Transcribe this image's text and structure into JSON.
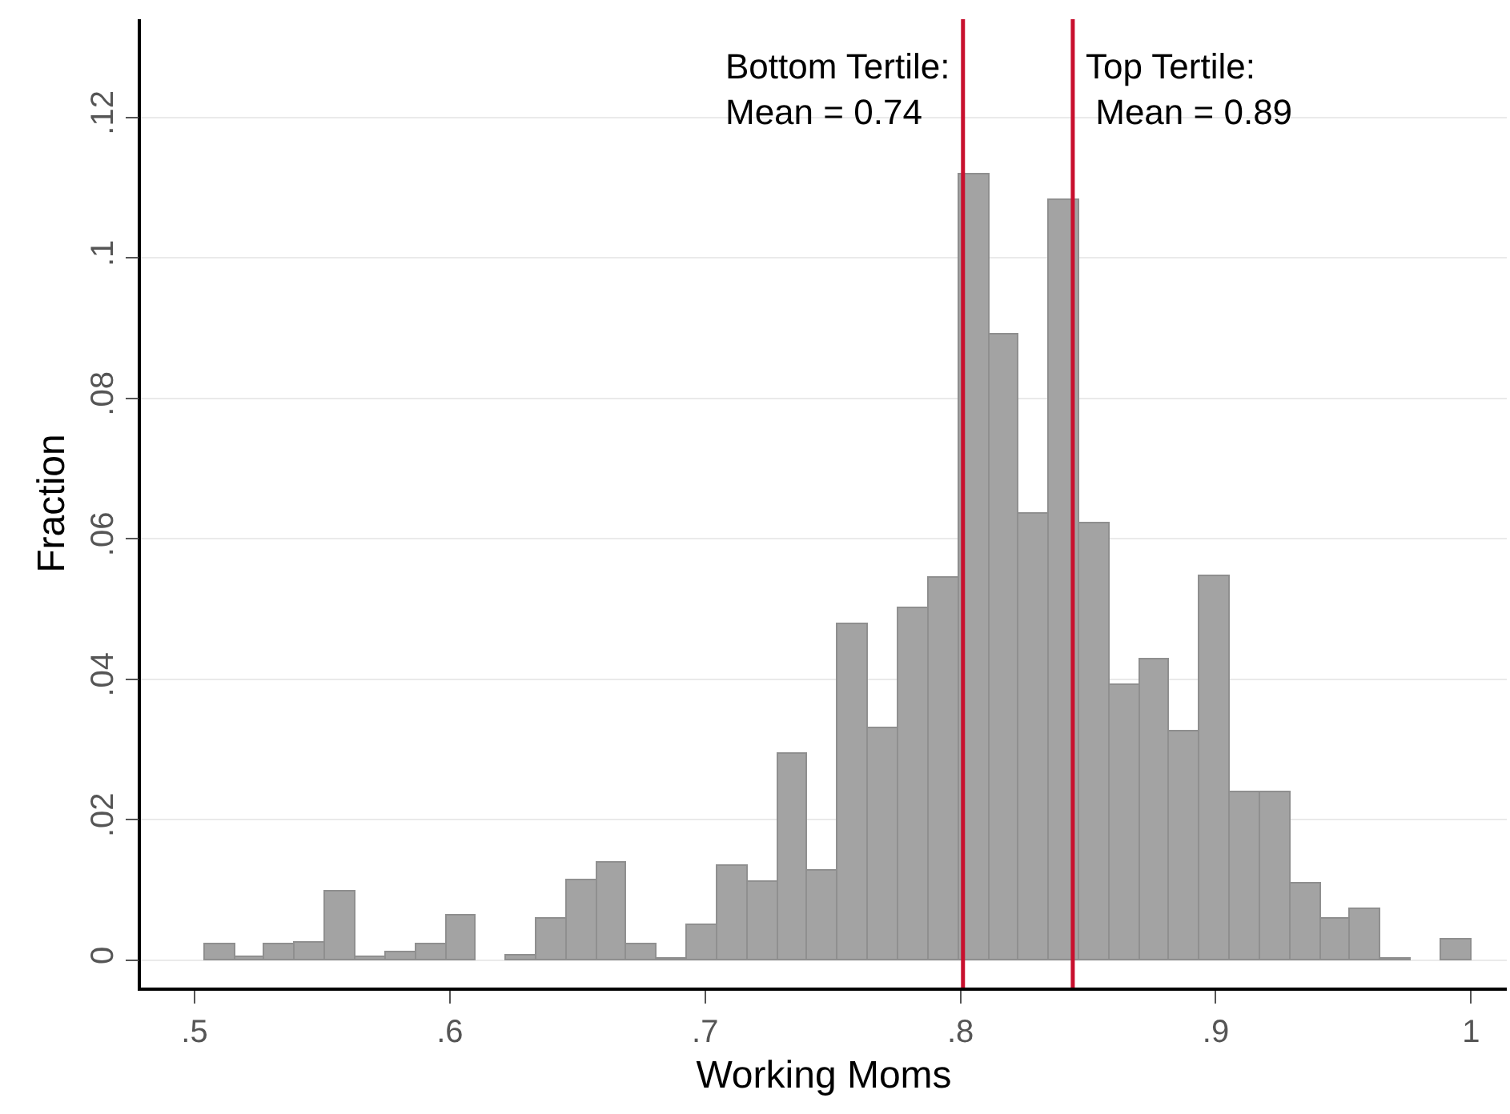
{
  "chart_data": {
    "type": "histogram",
    "xlabel": "Working Moms",
    "ylabel": "Fraction",
    "bins": [
      0.504,
      0.5158,
      0.5276,
      0.5394,
      0.5512,
      0.5631,
      0.5749,
      0.5867,
      0.5985,
      0.6103,
      0.6221,
      0.6339,
      0.6457,
      0.6575,
      0.6693,
      0.6812,
      0.693,
      0.7048,
      0.7166,
      0.7284,
      0.7402,
      0.752,
      0.7638,
      0.7756,
      0.7874,
      0.7993,
      0.8111,
      0.8229,
      0.8347,
      0.8465,
      0.8583,
      0.8701,
      0.8819,
      0.8937,
      0.9055,
      0.9173,
      0.9291,
      0.941,
      0.9528,
      0.9646,
      0.9764,
      0.9882,
      1.0
    ],
    "series": [
      {
        "color": "#a3a3a3",
        "values": [
          0.0023,
          0.0004,
          0.0023,
          0.0025,
          0.0097,
          0.0004,
          0.0011,
          0.0023,
          0.0064,
          0,
          0.0006,
          0.0058,
          0.0113,
          0.0138,
          0.0023,
          0.0002,
          0.0049,
          0.0135,
          0.0112,
          0.0293,
          0.0128,
          0.0478,
          0.0331,
          0.0501,
          0.0544,
          0.1118,
          0.089,
          0.0635,
          0.1083,
          0.0623,
          0.0391,
          0.0428,
          0.0325,
          0.0546,
          0.0238,
          0.0238,
          0.0109,
          0.006,
          0.0072,
          0.0003,
          0,
          0.003
        ]
      }
    ],
    "xlim": [
      0.479,
      1.014
    ],
    "xticks": [
      {
        "value": 0.5,
        "label": ".5"
      },
      {
        "value": 0.6,
        "label": ".6"
      },
      {
        "value": 0.7,
        "label": ".7"
      },
      {
        "value": 0.8,
        "label": ".8"
      },
      {
        "value": 0.9,
        "label": ".9"
      },
      1
    ],
    "ylim": [
      -0.0039,
      0.134
    ],
    "yticks": [
      0,
      {
        "value": 0.02,
        "label": ".02"
      },
      {
        "value": 0.04,
        "label": ".04"
      },
      {
        "value": 0.06,
        "label": ".06"
      },
      {
        "value": 0.08,
        "label": ".08"
      },
      {
        "value": 0.1,
        "label": ".1"
      },
      {
        "value": 0.12,
        "label": ".12"
      }
    ],
    "grid": "y",
    "legend": false,
    "ref_lines": [
      {
        "axis": "x",
        "value": 0.801,
        "color": "#c8102e"
      },
      {
        "axis": "x",
        "value": 0.844,
        "color": "#c8102e"
      }
    ],
    "annotations": [
      "Bottom Tertile:\nMean = 0.74",
      "Top Tertile:\n Mean = 0.89"
    ]
  }
}
